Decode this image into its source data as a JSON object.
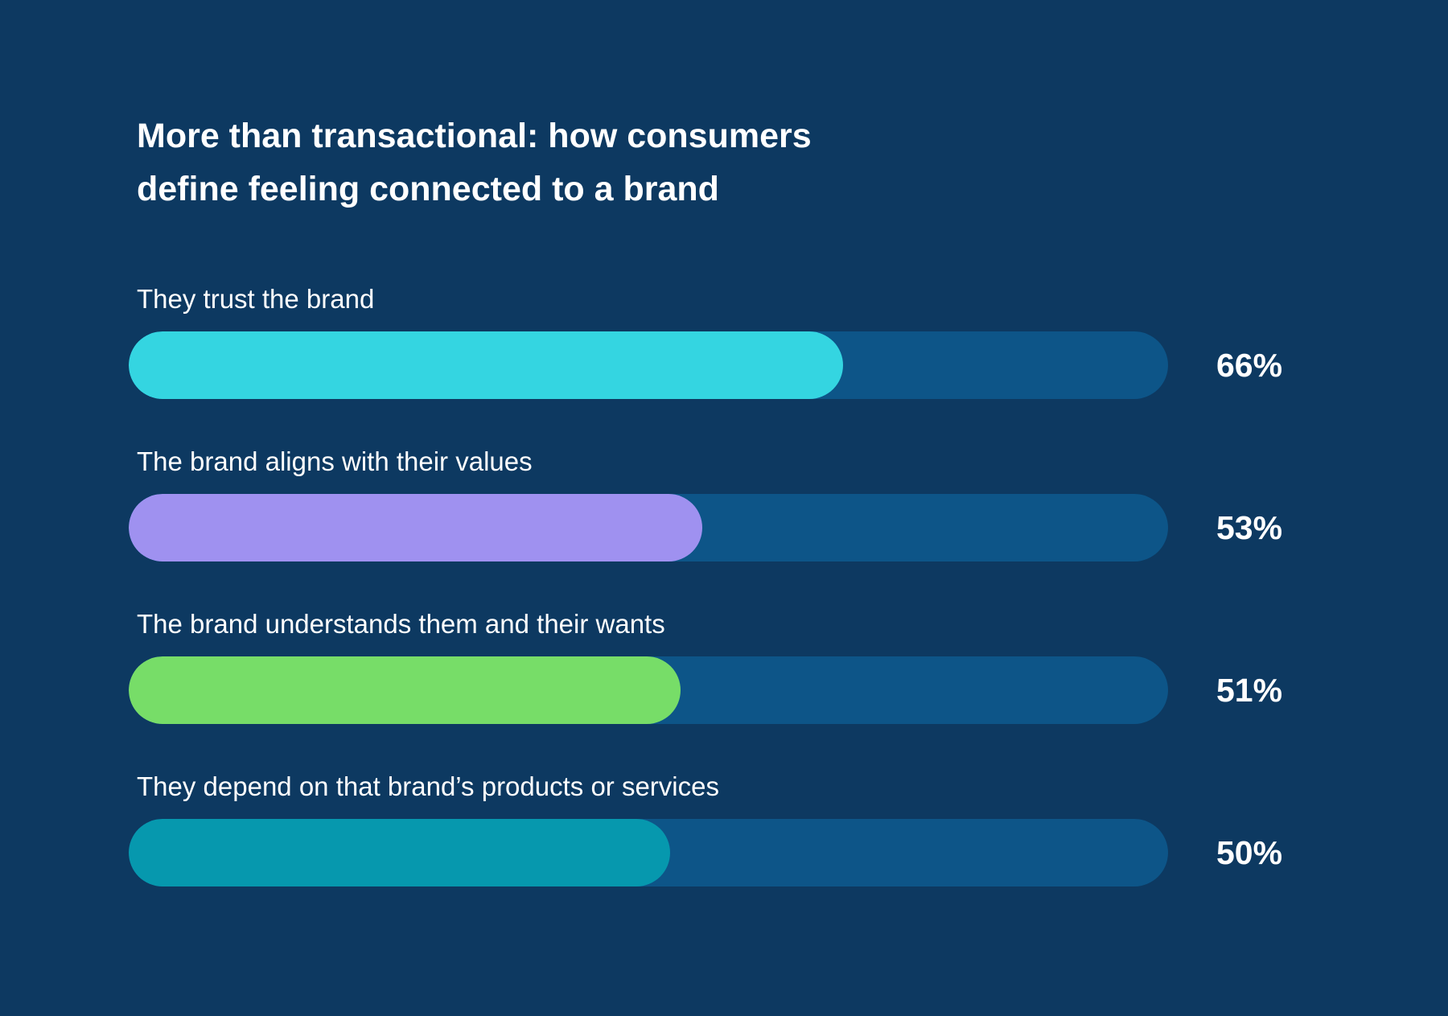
{
  "chart_data": {
    "type": "bar",
    "orientation": "horizontal",
    "title": "More than transactional: how consumers define feeling connected to a brand",
    "title_lines": [
      "More than transactional: how consumers",
      "define feeling connected to a brand"
    ],
    "categories": [
      "They trust the brand",
      "The brand aligns with their values",
      "The brand understands them and their wants",
      "They depend on that brand’s products or services"
    ],
    "values": [
      66,
      53,
      51,
      50
    ],
    "value_labels": [
      "66%",
      "53%",
      "51%",
      "50%"
    ],
    "unit": "%",
    "xlim": [
      0,
      96
    ],
    "xlabel": "",
    "ylabel": "",
    "grid": false,
    "legend": "none"
  },
  "colors": {
    "background": "#0d3961",
    "track": "#0d5588",
    "bars": [
      "#34d5e1",
      "#9f91f0",
      "#77dd68",
      "#0698ae"
    ],
    "text": "#ffffff"
  }
}
